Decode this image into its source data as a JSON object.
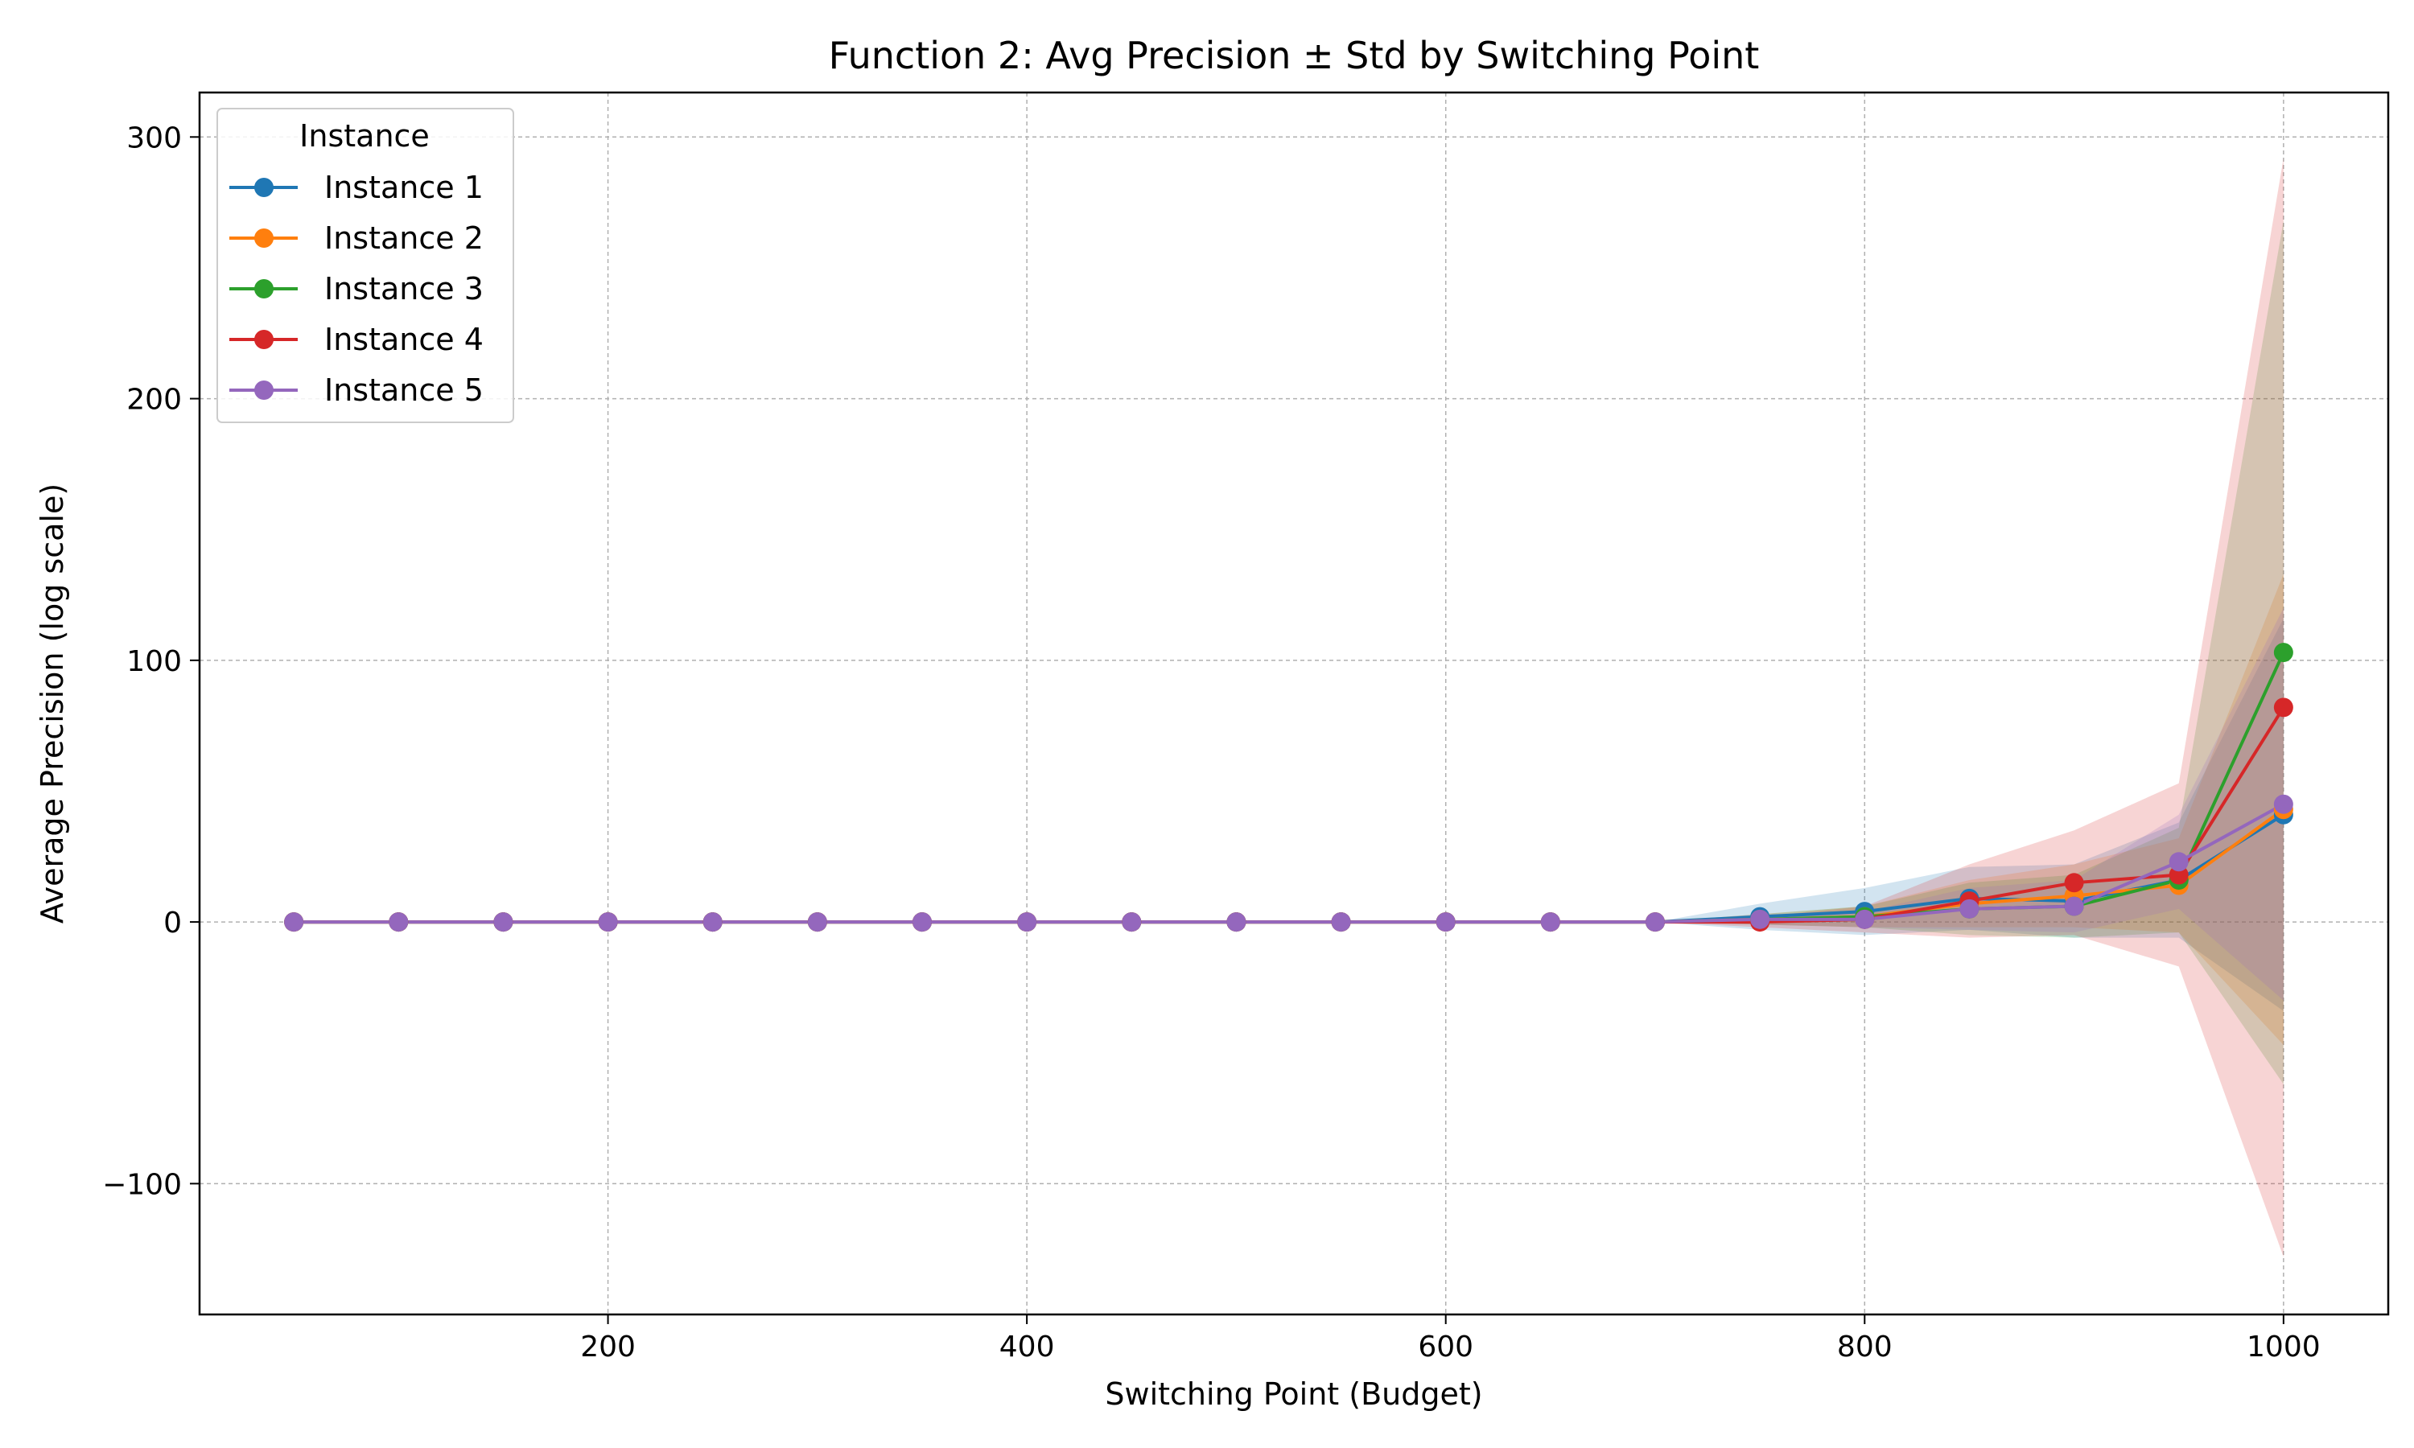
{
  "chart_data": {
    "type": "line",
    "title": "Function 2: Avg Precision ± Std by Switching Point",
    "xlabel": "Switching Point (Budget)",
    "ylabel": "Average Precision (log scale)",
    "xlim": [
      5,
      1050
    ],
    "ylim": [
      -150,
      317
    ],
    "x_ticks": [
      200,
      400,
      600,
      800,
      1000
    ],
    "x_tick_labels": [
      "200",
      "400",
      "600",
      "800",
      "1000"
    ],
    "y_ticks": [
      -100,
      0,
      100,
      200,
      300
    ],
    "y_tick_labels": [
      "−100",
      "0",
      "100",
      "200",
      "300"
    ],
    "grid": true,
    "legend": {
      "title": "Instance",
      "position": "top-left"
    },
    "x": [
      50,
      100,
      150,
      200,
      250,
      300,
      350,
      400,
      450,
      500,
      550,
      600,
      650,
      700,
      750,
      800,
      850,
      900,
      950,
      1000
    ],
    "series": [
      {
        "name": "Instance 1",
        "color": "#1f77b4",
        "values": [
          0,
          0,
          0,
          0,
          0,
          0,
          0,
          0,
          0,
          0,
          0,
          0,
          0,
          0,
          2,
          4,
          9,
          8,
          16,
          41
        ],
        "std": [
          0,
          0,
          0,
          0,
          0,
          0,
          0,
          0,
          0,
          0,
          0,
          0,
          0,
          0,
          5,
          9,
          12,
          14,
          22,
          75
        ]
      },
      {
        "name": "Instance 2",
        "color": "#ff7f0e",
        "values": [
          0,
          0,
          0,
          0,
          0,
          0,
          0,
          0,
          0,
          0,
          0,
          0,
          0,
          0,
          1,
          2,
          7,
          10,
          14,
          43
        ],
        "std": [
          0,
          0,
          0,
          0,
          0,
          0,
          0,
          0,
          0,
          0,
          0,
          0,
          0,
          0,
          2,
          4,
          9,
          12,
          18,
          90
        ]
      },
      {
        "name": "Instance 3",
        "color": "#2ca02c",
        "values": [
          0,
          0,
          0,
          0,
          0,
          0,
          0,
          0,
          0,
          0,
          0,
          0,
          0,
          0,
          1,
          2,
          5,
          6,
          16,
          103
        ],
        "std": [
          0,
          0,
          0,
          0,
          0,
          0,
          0,
          0,
          0,
          0,
          0,
          0,
          0,
          0,
          2,
          4,
          10,
          12,
          20,
          165
        ]
      },
      {
        "name": "Instance 4",
        "color": "#d62728",
        "values": [
          0,
          0,
          0,
          0,
          0,
          0,
          0,
          0,
          0,
          0,
          0,
          0,
          0,
          0,
          0,
          1,
          8,
          15,
          18,
          82
        ],
        "std": [
          0,
          0,
          0,
          0,
          0,
          0,
          0,
          0,
          0,
          0,
          0,
          0,
          0,
          0,
          2,
          5,
          14,
          20,
          35,
          210
        ]
      },
      {
        "name": "Instance 5",
        "color": "#9467bd",
        "values": [
          0,
          0,
          0,
          0,
          0,
          0,
          0,
          0,
          0,
          0,
          0,
          0,
          0,
          0,
          1,
          1,
          5,
          6,
          23,
          45
        ],
        "std": [
          0,
          0,
          0,
          0,
          0,
          0,
          0,
          0,
          0,
          0,
          0,
          0,
          0,
          0,
          2,
          3,
          8,
          10,
          18,
          75
        ]
      }
    ]
  }
}
